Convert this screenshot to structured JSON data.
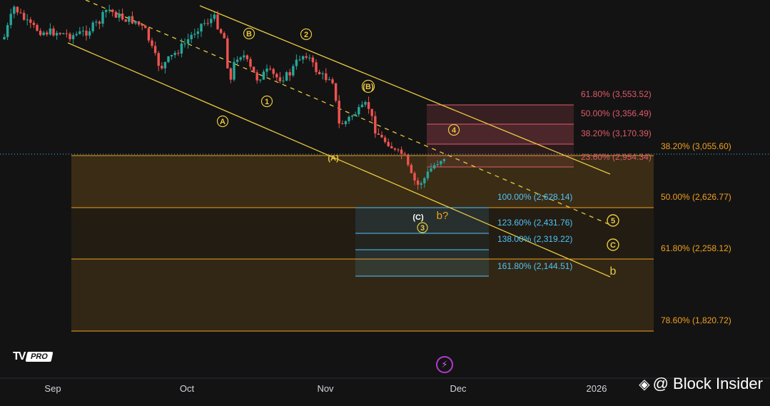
{
  "chart_data": {
    "type": "candlestick",
    "x_axis": {
      "tick_labels": [
        "Sep",
        "Oct",
        "Nov",
        "Dec",
        "2026"
      ]
    },
    "price_axis": {
      "visible_range_approx": [
        1700,
        4300
      ]
    },
    "current_price_line": 3055.6,
    "candles": [],
    "fib_retracement_large": {
      "color": "#f0a020",
      "levels": [
        {
          "label": "38.20% (3,055.60)",
          "value": 3055.6
        },
        {
          "label": "50.00% (2,626.77)",
          "value": 2626.77
        },
        {
          "label": "61.80% (2,258.12)",
          "value": 2258.12
        },
        {
          "label": "78.60% (1,820.72)",
          "value": 1820.72
        }
      ]
    },
    "fib_resistance": {
      "color": "#e05a6a",
      "levels": [
        {
          "label": "61.80% (3,553.52)",
          "value": 3553.52
        },
        {
          "label": "50.00% (3,356.49)",
          "value": 3356.49
        },
        {
          "label": "38.20% (3,170.39)",
          "value": 3170.39
        },
        {
          "label": "23.60% (2,954.34)",
          "value": 2954.34
        }
      ]
    },
    "fib_extension": {
      "color": "#4fc3f7",
      "levels": [
        {
          "label": "100.00% (2,628.14)",
          "value": 2628.14
        },
        {
          "label": "123.60% (2,431.76)",
          "value": 2431.76
        },
        {
          "label": "138.00% (2,319.22)",
          "value": 2319.22
        },
        {
          "label": "161.80% (2,144.51)",
          "value": 2144.51
        }
      ]
    },
    "wave_labels": [
      {
        "text": "A",
        "circled": true
      },
      {
        "text": "B",
        "circled": true
      },
      {
        "text": "1",
        "circled": true
      },
      {
        "text": "2",
        "circled": true
      },
      {
        "text": "(B)",
        "circled": true
      },
      {
        "text": "(A)",
        "circled": false
      },
      {
        "text": "4",
        "circled": true
      },
      {
        "text": "(C)",
        "circled": false
      },
      {
        "text": "3",
        "circled": true
      },
      {
        "text": "b?",
        "circled": false
      },
      {
        "text": "5",
        "circled": true
      },
      {
        "text": "C",
        "circled": true
      },
      {
        "text": "b",
        "circled": false
      }
    ],
    "channel": {
      "color": "#e8c840",
      "lines": [
        "upper",
        "middle-dashed",
        "lower"
      ]
    }
  },
  "branding": {
    "tv_mark": "TV",
    "tv_pro": "PRO",
    "watermark": "@ Block Insider",
    "flash_icon": "lightning-icon"
  },
  "colors": {
    "background": "#131313",
    "bull": "#26a69a",
    "bear": "#ef5350",
    "channel": "#e8c840"
  }
}
